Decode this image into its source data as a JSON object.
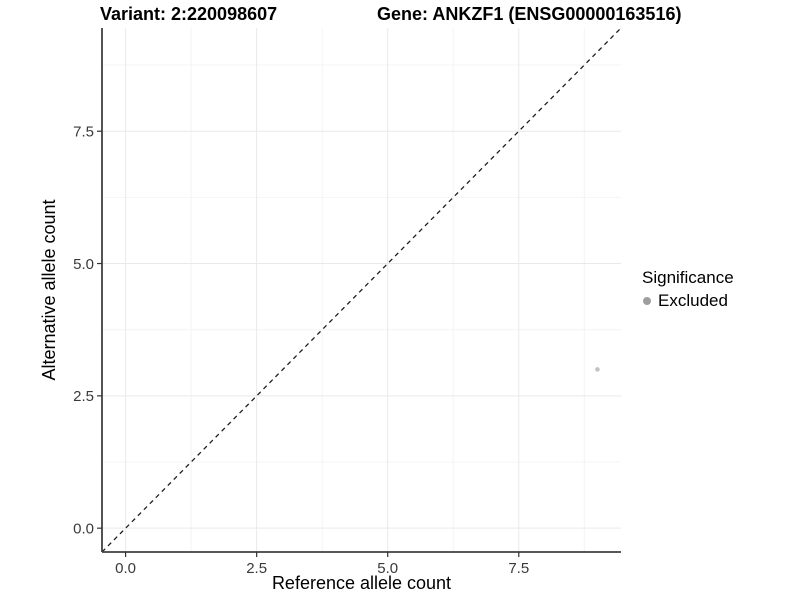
{
  "chart_data": {
    "type": "scatter",
    "title_left": "Variant: 2:220098607",
    "title_right": "Gene: ANKZF1 (ENSG00000163516)",
    "xlabel": "Reference allele count",
    "ylabel": "Alternative allele count",
    "xlim": [
      -0.45,
      9.45
    ],
    "ylim": [
      -0.45,
      9.45
    ],
    "x_ticks": [
      0.0,
      2.5,
      5.0,
      7.5
    ],
    "x_tick_labels": [
      "0.0",
      "2.5",
      "5.0",
      "7.5"
    ],
    "y_ticks": [
      0.0,
      2.5,
      5.0,
      7.5
    ],
    "y_tick_labels": [
      "0.0",
      "2.5",
      "5.0",
      "7.5"
    ],
    "minor_ticks": [
      1.25,
      3.75,
      6.25,
      8.75
    ],
    "grid": true,
    "series": [
      {
        "name": "Excluded",
        "marker": "circle",
        "color": "#c2c2c2",
        "size": 2.3,
        "points": [
          {
            "x": 9,
            "y": 3
          }
        ]
      }
    ],
    "reference_line": {
      "slope": 1,
      "intercept": 0,
      "style": "dashed",
      "color": "#1f1f1f"
    },
    "legend": {
      "title": "Significance",
      "position": "right",
      "items": [
        {
          "label": "Excluded",
          "color": "#9e9e9e",
          "marker": "circle"
        }
      ]
    }
  },
  "style": {
    "background": "#ffffff",
    "grid_major_color": "#e9e9e9",
    "grid_minor_color": "#f4f4f4",
    "axis_line_color": "#404040",
    "tick_mark_color": "#333333",
    "tick_label_color": "#3a3a3a",
    "axis_title_color": "#000000",
    "title_color": "#000000"
  }
}
